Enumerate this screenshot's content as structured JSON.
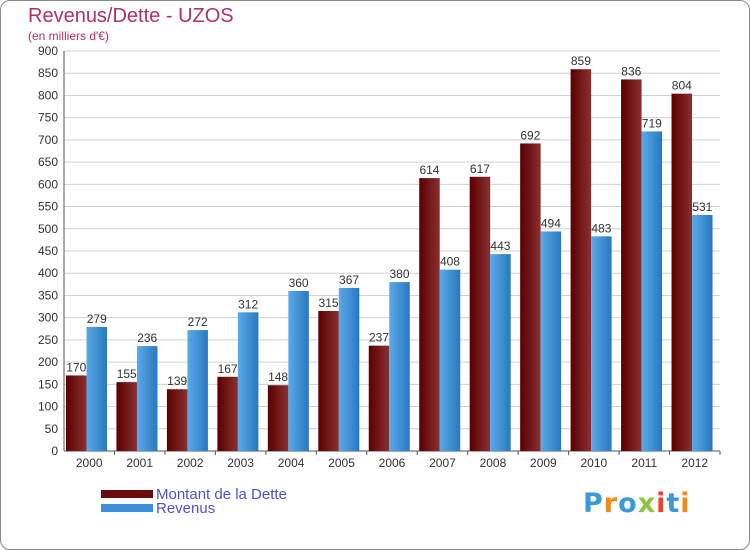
{
  "title": "Revenus/Dette - UZOS",
  "subtitle": "(en milliers d'€)",
  "chart_data": {
    "type": "bar",
    "categories": [
      "2000",
      "2001",
      "2002",
      "2003",
      "2004",
      "2005",
      "2006",
      "2007",
      "2008",
      "2009",
      "2010",
      "2011",
      "2012"
    ],
    "series": [
      {
        "name": "Montant de la Dette",
        "values": [
          170,
          155,
          139,
          167,
          148,
          315,
          237,
          614,
          617,
          692,
          859,
          836,
          804
        ]
      },
      {
        "name": "Revenus",
        "values": [
          279,
          236,
          272,
          312,
          360,
          367,
          380,
          408,
          443,
          494,
          483,
          719,
          531
        ]
      }
    ],
    "ylim": [
      0,
      900
    ],
    "yticks": [
      0,
      50,
      100,
      150,
      200,
      250,
      300,
      350,
      400,
      450,
      500,
      550,
      600,
      650,
      700,
      750,
      800,
      850,
      900
    ],
    "grid": true,
    "legend_position": "bottom-left"
  },
  "colors": {
    "dette_dark": "#5a0000",
    "dette_light": "#8b3030",
    "revenus_light": "#5aaae8",
    "revenus_dark": "#2878c0",
    "title": "#b0306a",
    "legend_text": "#5050d0"
  },
  "logo": {
    "text": "Proxiti",
    "letters": [
      {
        "ch": "P",
        "color": "#3a9ad8"
      },
      {
        "ch": "r",
        "color": "#f08a1a"
      },
      {
        "ch": "o",
        "color": "#3a9ad8"
      },
      {
        "ch": "x",
        "color": "#8cc43a"
      },
      {
        "ch": "i",
        "color": "#e8452a"
      },
      {
        "ch": "t",
        "color": "#3a9ad8"
      },
      {
        "ch": "i",
        "color": "#f08a1a"
      }
    ]
  }
}
